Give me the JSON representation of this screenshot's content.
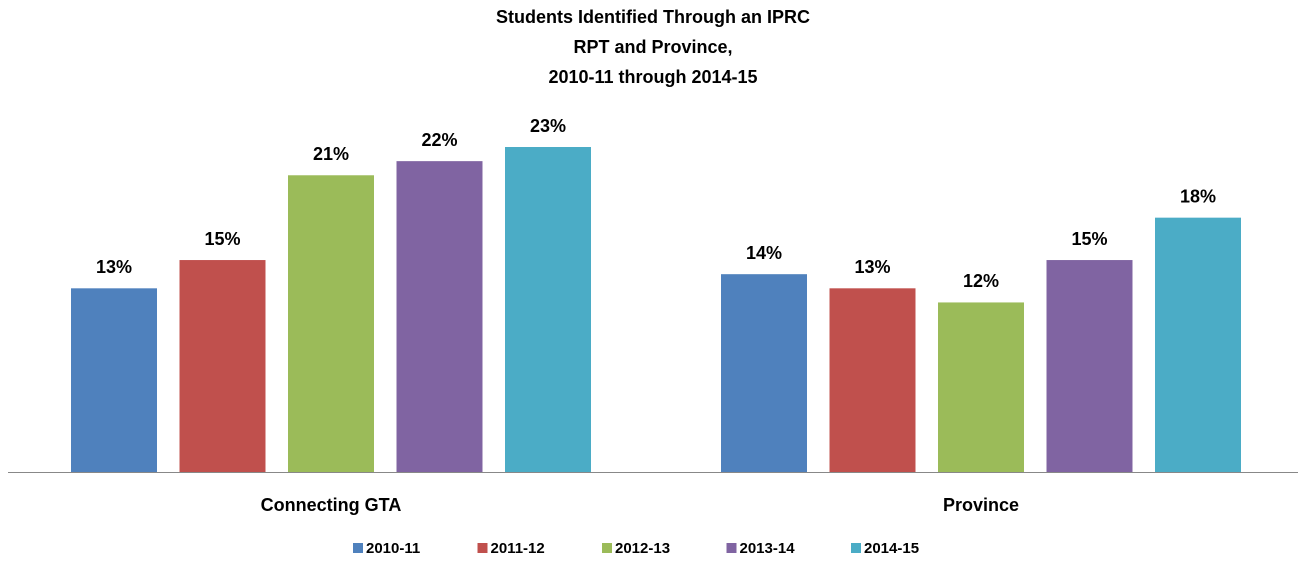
{
  "chart_data": {
    "type": "bar",
    "title": [
      "Students Identified Through an IPRC",
      "RPT and Province,",
      "2010-11 through 2014-15"
    ],
    "categories": [
      "Connecting GTA",
      "Province"
    ],
    "series": [
      {
        "name": "2010-11",
        "color": "#4f81bd",
        "values": [
          13,
          14
        ],
        "value_labels": [
          "13%",
          "14%"
        ]
      },
      {
        "name": "2011-12",
        "color": "#c0504d",
        "values": [
          15,
          13
        ],
        "value_labels": [
          "15%",
          "13%"
        ]
      },
      {
        "name": "2012-13",
        "color": "#9bbb59",
        "values": [
          21,
          12
        ],
        "value_labels": [
          "21%",
          "12%"
        ]
      },
      {
        "name": "2013-14",
        "color": "#8064a2",
        "values": [
          22,
          15
        ],
        "value_labels": [
          "22%",
          "15%"
        ]
      },
      {
        "name": "2014-15",
        "color": "#4bacc6",
        "values": [
          23,
          18
        ],
        "value_labels": [
          "23%",
          "18%"
        ]
      }
    ],
    "legend": "bottom"
  }
}
